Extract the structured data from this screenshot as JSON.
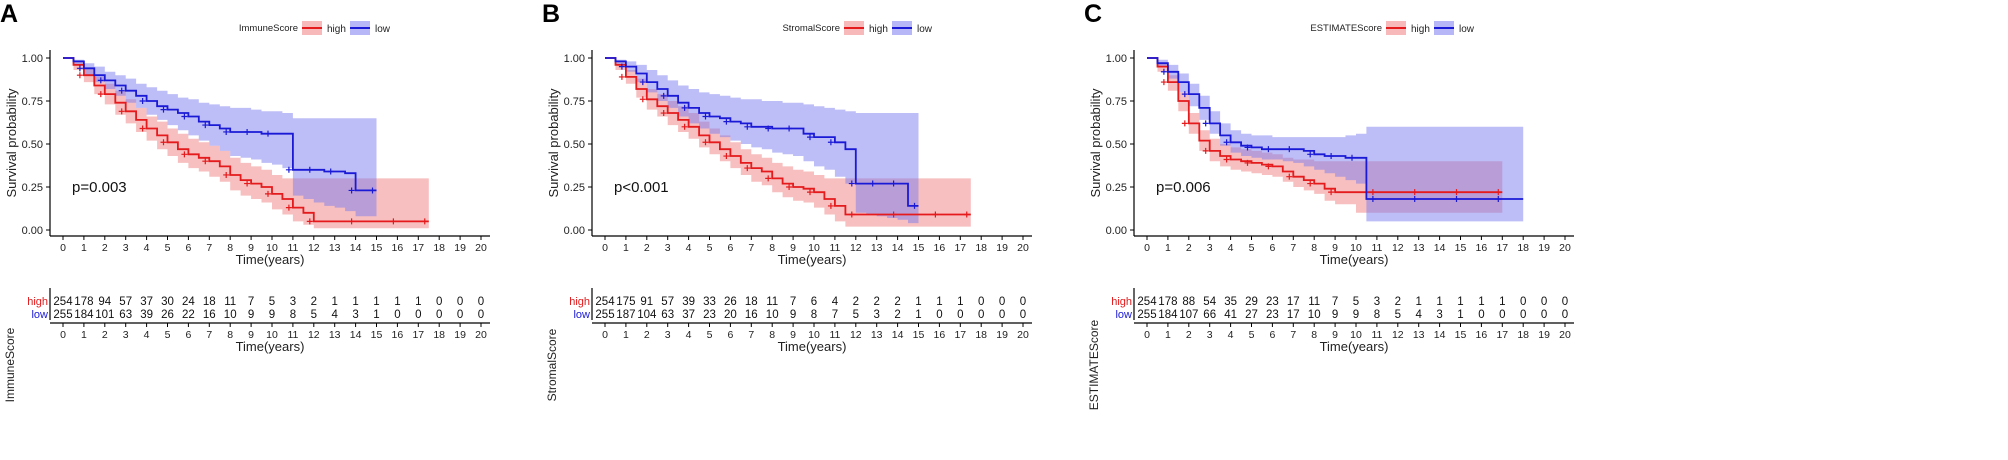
{
  "colors": {
    "high": "#e41a1c",
    "low": "#1a1ad6",
    "high_fill": "#f08080",
    "low_fill": "#7b7bf0"
  },
  "chart_data": [
    {
      "type": "line",
      "subtype": "kaplan-meier",
      "panel_label": "A",
      "legend_title": "ImmuneScore",
      "legend": [
        "high",
        "low"
      ],
      "p_value": "p=0.003",
      "xlabel": "Time(years)",
      "ylabel": "Survival probability",
      "xlim": [
        0,
        20
      ],
      "ylim": [
        0,
        1
      ],
      "x_ticks": [
        "0",
        "1",
        "2",
        "3",
        "4",
        "5",
        "6",
        "7",
        "8",
        "9",
        "10",
        "11",
        "12",
        "13",
        "14",
        "15",
        "16",
        "17",
        "18",
        "19",
        "20"
      ],
      "y_ticks": [
        "0.00",
        "0.25",
        "0.50",
        "0.75",
        "1.00"
      ],
      "series": [
        {
          "name": "high",
          "x": [
            0,
            0.5,
            1,
            1.5,
            2,
            2.5,
            3,
            3.5,
            4,
            4.5,
            5,
            5.5,
            6,
            6.5,
            7,
            7.5,
            8,
            8.5,
            9,
            9.5,
            10,
            10.5,
            11,
            11.5,
            12,
            13,
            14,
            15,
            16,
            17,
            17.5
          ],
          "values": [
            1,
            0.96,
            0.9,
            0.84,
            0.79,
            0.74,
            0.69,
            0.64,
            0.59,
            0.55,
            0.51,
            0.47,
            0.44,
            0.42,
            0.4,
            0.37,
            0.32,
            0.29,
            0.27,
            0.25,
            0.21,
            0.18,
            0.13,
            0.1,
            0.05,
            0.05,
            0.05,
            0.05,
            0.05,
            0.05,
            0.05
          ],
          "lower": [
            1,
            0.93,
            0.86,
            0.79,
            0.73,
            0.67,
            0.62,
            0.57,
            0.52,
            0.47,
            0.43,
            0.39,
            0.36,
            0.34,
            0.31,
            0.28,
            0.23,
            0.2,
            0.18,
            0.16,
            0.12,
            0.09,
            0.05,
            0.03,
            0.01,
            0.01,
            0.01,
            0.01,
            0.01,
            0.01,
            0.01
          ],
          "upper": [
            1,
            0.98,
            0.94,
            0.89,
            0.85,
            0.81,
            0.76,
            0.71,
            0.66,
            0.63,
            0.59,
            0.56,
            0.53,
            0.51,
            0.49,
            0.46,
            0.42,
            0.39,
            0.37,
            0.35,
            0.32,
            0.3,
            0.3,
            0.3,
            0.3,
            0.3,
            0.3,
            0.3,
            0.3,
            0.3,
            0.3
          ]
        },
        {
          "name": "low",
          "x": [
            0,
            0.5,
            1,
            1.5,
            2,
            2.5,
            3,
            3.5,
            4,
            4.5,
            5,
            5.5,
            6,
            6.5,
            7,
            7.5,
            8,
            8.5,
            9,
            9.5,
            10,
            10.5,
            11,
            11.5,
            12,
            12.5,
            13,
            13.5,
            14,
            14.5,
            15
          ],
          "values": [
            1,
            0.98,
            0.94,
            0.9,
            0.87,
            0.84,
            0.81,
            0.78,
            0.75,
            0.72,
            0.7,
            0.68,
            0.66,
            0.63,
            0.61,
            0.59,
            0.57,
            0.57,
            0.57,
            0.56,
            0.56,
            0.56,
            0.35,
            0.35,
            0.35,
            0.34,
            0.34,
            0.33,
            0.23,
            0.23,
            0.23
          ],
          "lower": [
            1,
            0.96,
            0.9,
            0.86,
            0.82,
            0.78,
            0.74,
            0.71,
            0.67,
            0.64,
            0.61,
            0.58,
            0.55,
            0.52,
            0.49,
            0.46,
            0.43,
            0.42,
            0.41,
            0.39,
            0.38,
            0.36,
            0.2,
            0.18,
            0.16,
            0.14,
            0.13,
            0.11,
            0.08,
            0.08,
            0.08
          ],
          "upper": [
            1,
            0.99,
            0.97,
            0.95,
            0.92,
            0.9,
            0.88,
            0.85,
            0.83,
            0.81,
            0.79,
            0.77,
            0.76,
            0.74,
            0.73,
            0.72,
            0.71,
            0.71,
            0.7,
            0.69,
            0.69,
            0.68,
            0.65,
            0.65,
            0.65,
            0.65,
            0.65,
            0.65,
            0.65,
            0.65,
            0.65
          ]
        }
      ],
      "risk_table": {
        "ylabel": "ImmuneScore",
        "xlabel": "Time(years)",
        "rows": [
          {
            "name": "high",
            "values": [
              "254",
              "178",
              "94",
              "57",
              "37",
              "30",
              "24",
              "18",
              "11",
              "7",
              "5",
              "3",
              "2",
              "1",
              "1",
              "1",
              "1",
              "1",
              "0",
              "0",
              "0"
            ]
          },
          {
            "name": "low",
            "values": [
              "255",
              "184",
              "101",
              "63",
              "39",
              "26",
              "22",
              "16",
              "10",
              "9",
              "9",
              "8",
              "5",
              "4",
              "3",
              "1",
              "0",
              "0",
              "0",
              "0",
              "0"
            ]
          }
        ]
      }
    },
    {
      "type": "line",
      "subtype": "kaplan-meier",
      "panel_label": "B",
      "legend_title": "StromalScore",
      "legend": [
        "high",
        "low"
      ],
      "p_value": "p<0.001",
      "xlabel": "Time(years)",
      "ylabel": "Survival probability",
      "xlim": [
        0,
        20
      ],
      "ylim": [
        0,
        1
      ],
      "x_ticks": [
        "0",
        "1",
        "2",
        "3",
        "4",
        "5",
        "6",
        "7",
        "8",
        "9",
        "10",
        "11",
        "12",
        "13",
        "14",
        "15",
        "16",
        "17",
        "18",
        "19",
        "20"
      ],
      "y_ticks": [
        "0.00",
        "0.25",
        "0.50",
        "0.75",
        "1.00"
      ],
      "series": [
        {
          "name": "high",
          "x": [
            0,
            0.5,
            1,
            1.5,
            2,
            2.5,
            3,
            3.5,
            4,
            4.5,
            5,
            5.5,
            6,
            6.5,
            7,
            7.5,
            8,
            8.5,
            9,
            9.5,
            10,
            10.5,
            11,
            11.5,
            12,
            13,
            14,
            15,
            16,
            17,
            17.5
          ],
          "values": [
            1,
            0.96,
            0.89,
            0.82,
            0.76,
            0.72,
            0.68,
            0.64,
            0.6,
            0.55,
            0.51,
            0.47,
            0.43,
            0.39,
            0.36,
            0.34,
            0.3,
            0.27,
            0.25,
            0.24,
            0.22,
            0.18,
            0.14,
            0.09,
            0.09,
            0.09,
            0.09,
            0.09,
            0.09,
            0.09,
            0.09
          ],
          "lower": [
            1,
            0.93,
            0.85,
            0.77,
            0.7,
            0.66,
            0.61,
            0.57,
            0.53,
            0.48,
            0.44,
            0.4,
            0.36,
            0.32,
            0.28,
            0.26,
            0.22,
            0.19,
            0.17,
            0.16,
            0.13,
            0.09,
            0.05,
            0.02,
            0.02,
            0.02,
            0.02,
            0.02,
            0.02,
            0.02,
            0.02
          ],
          "upper": [
            1,
            0.98,
            0.93,
            0.88,
            0.82,
            0.79,
            0.75,
            0.72,
            0.68,
            0.63,
            0.59,
            0.55,
            0.51,
            0.47,
            0.44,
            0.42,
            0.39,
            0.37,
            0.35,
            0.34,
            0.32,
            0.3,
            0.3,
            0.3,
            0.3,
            0.3,
            0.3,
            0.3,
            0.3,
            0.3,
            0.3
          ]
        },
        {
          "name": "low",
          "x": [
            0,
            0.5,
            1,
            1.5,
            2,
            2.5,
            3,
            3.5,
            4,
            4.5,
            5,
            5.5,
            6,
            6.5,
            7,
            7.5,
            8,
            8.5,
            9,
            9.5,
            10,
            10.5,
            11,
            11.5,
            12,
            12.5,
            13,
            13.5,
            14,
            14.5,
            15
          ],
          "values": [
            1,
            0.98,
            0.95,
            0.91,
            0.86,
            0.82,
            0.78,
            0.74,
            0.71,
            0.68,
            0.66,
            0.65,
            0.63,
            0.62,
            0.6,
            0.6,
            0.59,
            0.59,
            0.59,
            0.56,
            0.54,
            0.54,
            0.51,
            0.47,
            0.27,
            0.27,
            0.27,
            0.27,
            0.27,
            0.14,
            0.14
          ],
          "lower": [
            1,
            0.96,
            0.92,
            0.86,
            0.8,
            0.75,
            0.71,
            0.66,
            0.62,
            0.59,
            0.56,
            0.54,
            0.52,
            0.5,
            0.48,
            0.47,
            0.45,
            0.44,
            0.43,
            0.4,
            0.37,
            0.35,
            0.31,
            0.27,
            0.1,
            0.09,
            0.08,
            0.07,
            0.06,
            0.04,
            0.04
          ],
          "upper": [
            1,
            0.99,
            0.98,
            0.96,
            0.93,
            0.9,
            0.87,
            0.84,
            0.82,
            0.8,
            0.79,
            0.78,
            0.77,
            0.76,
            0.76,
            0.75,
            0.75,
            0.74,
            0.74,
            0.73,
            0.72,
            0.71,
            0.7,
            0.69,
            0.68,
            0.68,
            0.68,
            0.68,
            0.68,
            0.68,
            0.68
          ]
        }
      ],
      "risk_table": {
        "ylabel": "StromalScore",
        "xlabel": "Time(years)",
        "rows": [
          {
            "name": "high",
            "values": [
              "254",
              "175",
              "91",
              "57",
              "39",
              "33",
              "26",
              "18",
              "11",
              "7",
              "6",
              "4",
              "2",
              "2",
              "2",
              "1",
              "1",
              "1",
              "0",
              "0",
              "0"
            ]
          },
          {
            "name": "low",
            "values": [
              "255",
              "187",
              "104",
              "63",
              "37",
              "23",
              "20",
              "16",
              "10",
              "9",
              "8",
              "7",
              "5",
              "3",
              "2",
              "1",
              "0",
              "0",
              "0",
              "0",
              "0"
            ]
          }
        ]
      }
    },
    {
      "type": "line",
      "subtype": "kaplan-meier",
      "panel_label": "C",
      "legend_title": "ESTIMATEScore",
      "legend": [
        "high",
        "low"
      ],
      "p_value": "p=0.006",
      "xlabel": "Time(years)",
      "ylabel": "Survival probability",
      "xlim": [
        0,
        20
      ],
      "ylim": [
        0,
        1
      ],
      "x_ticks": [
        "0",
        "1",
        "2",
        "3",
        "4",
        "5",
        "6",
        "7",
        "8",
        "9",
        "10",
        "11",
        "12",
        "13",
        "14",
        "15",
        "16",
        "17",
        "18",
        "19",
        "20"
      ],
      "y_ticks": [
        "0.00",
        "0.25",
        "0.50",
        "0.75",
        "1.00"
      ],
      "series": [
        {
          "name": "high",
          "x": [
            0,
            0.5,
            1,
            1.5,
            2,
            2.5,
            3,
            3.5,
            4,
            4.5,
            5,
            5.5,
            6,
            6.5,
            7,
            7.5,
            8,
            8.5,
            9,
            10,
            11,
            12,
            13,
            14,
            15,
            16,
            17
          ],
          "values": [
            1,
            0.95,
            0.86,
            0.75,
            0.62,
            0.52,
            0.46,
            0.43,
            0.41,
            0.4,
            0.39,
            0.38,
            0.37,
            0.34,
            0.31,
            0.29,
            0.27,
            0.24,
            0.22,
            0.22,
            0.22,
            0.22,
            0.22,
            0.22,
            0.22,
            0.22,
            0.22
          ],
          "lower": [
            1,
            0.92,
            0.81,
            0.69,
            0.56,
            0.46,
            0.4,
            0.37,
            0.35,
            0.34,
            0.33,
            0.32,
            0.31,
            0.28,
            0.25,
            0.23,
            0.21,
            0.17,
            0.15,
            0.1,
            0.1,
            0.1,
            0.1,
            0.1,
            0.1,
            0.1,
            0.1
          ],
          "upper": [
            1,
            0.97,
            0.9,
            0.8,
            0.68,
            0.58,
            0.53,
            0.5,
            0.48,
            0.47,
            0.46,
            0.45,
            0.44,
            0.42,
            0.41,
            0.41,
            0.4,
            0.4,
            0.4,
            0.4,
            0.4,
            0.4,
            0.4,
            0.4,
            0.4,
            0.4,
            0.4
          ]
        },
        {
          "name": "low",
          "x": [
            0,
            0.5,
            1,
            1.5,
            2,
            2.5,
            3,
            3.5,
            4,
            4.5,
            5,
            5.5,
            6,
            6.5,
            7,
            7.5,
            8,
            8.5,
            9,
            9.5,
            10,
            10.5,
            11,
            12,
            13,
            14,
            15,
            16,
            17,
            18
          ],
          "values": [
            1,
            0.97,
            0.92,
            0.86,
            0.79,
            0.71,
            0.62,
            0.55,
            0.51,
            0.49,
            0.48,
            0.47,
            0.47,
            0.47,
            0.47,
            0.46,
            0.44,
            0.43,
            0.43,
            0.42,
            0.42,
            0.18,
            0.18,
            0.18,
            0.18,
            0.18,
            0.18,
            0.18,
            0.18,
            0.18
          ],
          "lower": [
            1,
            0.95,
            0.88,
            0.8,
            0.72,
            0.64,
            0.56,
            0.49,
            0.45,
            0.43,
            0.42,
            0.41,
            0.41,
            0.4,
            0.39,
            0.37,
            0.35,
            0.33,
            0.31,
            0.29,
            0.27,
            0.05,
            0.05,
            0.05,
            0.05,
            0.05,
            0.05,
            0.05,
            0.05,
            0.05
          ],
          "upper": [
            1,
            0.99,
            0.96,
            0.91,
            0.85,
            0.78,
            0.69,
            0.62,
            0.58,
            0.56,
            0.55,
            0.55,
            0.54,
            0.54,
            0.54,
            0.54,
            0.54,
            0.54,
            0.54,
            0.55,
            0.56,
            0.6,
            0.6,
            0.6,
            0.6,
            0.6,
            0.6,
            0.6,
            0.6,
            0.6
          ]
        }
      ],
      "risk_table": {
        "ylabel": "ESTIMATEScore",
        "xlabel": "Time(years)",
        "rows": [
          {
            "name": "high",
            "values": [
              "254",
              "178",
              "88",
              "54",
              "35",
              "29",
              "23",
              "17",
              "11",
              "7",
              "5",
              "3",
              "2",
              "1",
              "1",
              "1",
              "1",
              "1",
              "0",
              "0",
              "0"
            ]
          },
          {
            "name": "low",
            "values": [
              "255",
              "184",
              "107",
              "66",
              "41",
              "27",
              "23",
              "17",
              "10",
              "9",
              "9",
              "8",
              "5",
              "4",
              "3",
              "1",
              "0",
              "0",
              "0",
              "0",
              "0"
            ]
          }
        ]
      }
    }
  ]
}
